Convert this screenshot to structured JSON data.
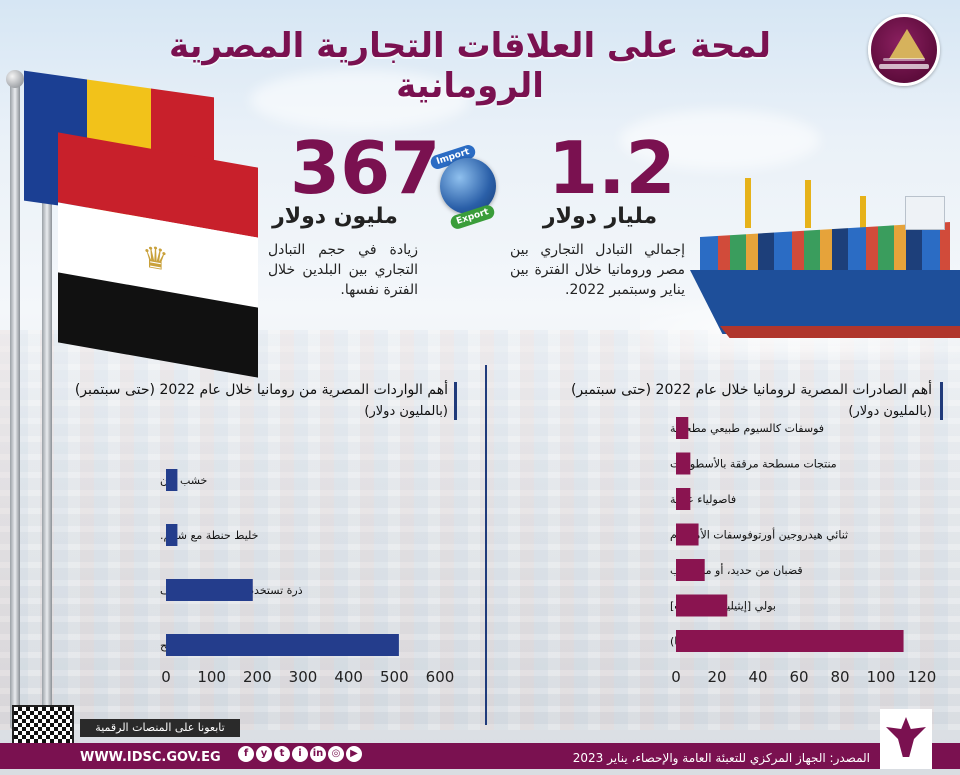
{
  "header": {
    "title": "لمحة على العلاقات التجارية المصرية الرومانية"
  },
  "stats": {
    "total": {
      "value": "1.2",
      "unit": "مليار دولار",
      "desc": "إجمالي التبادل التجاري بين مصر ورومانيا خلال الفترة بين يناير وسبتمبر 2022."
    },
    "increase": {
      "value": "367",
      "unit": "مليون دولار",
      "desc": "زيادة في حجم التبادل التجاري بين البلدين خلال الفترة نفسها."
    },
    "globe": {
      "import_label": "Import",
      "export_label": "Export"
    }
  },
  "chart_data": [
    {
      "type": "bar",
      "orientation": "horizontal",
      "title": "أهم الصادرات المصرية لرومانيا خلال عام 2022 (حتى سبتمبر)",
      "subtitle": "(بالمليون دولار)",
      "categories": [
        "فوسفات كالسيوم طبيعي مطحونة",
        "منتجات مسطحة مرققة بالأسطوانات",
        "فاصولياء عادية",
        "ثنائي هيدروجين أورتوفوسفات الأمونيوم",
        "قضبان من حديد، أو من صلب",
        "بولي [إيثيلين تيرفثالات]",
        "البولة (يوريا)"
      ],
      "values": [
        6,
        7,
        7,
        11,
        14,
        25,
        111
      ],
      "xlim": [
        0,
        120
      ],
      "xticks": [
        0,
        20,
        40,
        60,
        80,
        100,
        120
      ],
      "bar_color": "#8a1450"
    },
    {
      "type": "bar",
      "orientation": "horizontal",
      "title": "أهم الواردات المصرية من رومانيا خلال عام 2022 (حتى سبتمبر)",
      "subtitle": "(بالمليون دولار)",
      "categories": [
        "خشب زان",
        "خليط حنطة مع شيلم.",
        "ذرة تستخدم في صناعة الأعلاف",
        "قمح"
      ],
      "values": [
        25,
        25,
        190,
        510
      ],
      "xlim": [
        0,
        600
      ],
      "xticks": [
        0,
        100,
        200,
        300,
        400,
        500,
        600
      ],
      "bar_color": "#243d8c"
    }
  ],
  "footer": {
    "source": "المصدر: الجهاز المركزي للتعبئة العامة والإحصاء، يناير 2023",
    "url": "WWW.IDSC.GOV.EG",
    "follow": "تابعونا على المنصات الرقمية",
    "social": [
      "f",
      "y",
      "t",
      "i",
      "in",
      "◎",
      "▶"
    ]
  }
}
